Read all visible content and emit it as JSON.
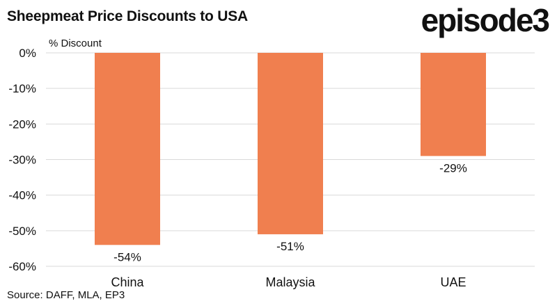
{
  "header": {
    "title": "Sheepmeat Price Discounts to USA",
    "brand": "episode3"
  },
  "footer": {
    "source": "Source: DAFF, MLA, EP3"
  },
  "colors": {
    "bar": "#f07f4f",
    "grid": "#d9d9d9",
    "text": "#111111"
  },
  "chart_data": {
    "type": "bar",
    "title": "Sheepmeat Price Discounts to USA",
    "ylabel": "% Discount",
    "xlabel": "",
    "categories": [
      "China",
      "Malaysia",
      "UAE"
    ],
    "values": [
      -54,
      -51,
      -29
    ],
    "data_labels": [
      "-54%",
      "-51%",
      "-29%"
    ],
    "ylim": [
      -60,
      0
    ],
    "yticks": [
      0,
      -10,
      -20,
      -30,
      -40,
      -50,
      -60
    ],
    "ytick_labels": [
      "0%",
      "-10%",
      "-20%",
      "-30%",
      "-40%",
      "-50%",
      "-60%"
    ],
    "grid": true,
    "legend": "none"
  }
}
